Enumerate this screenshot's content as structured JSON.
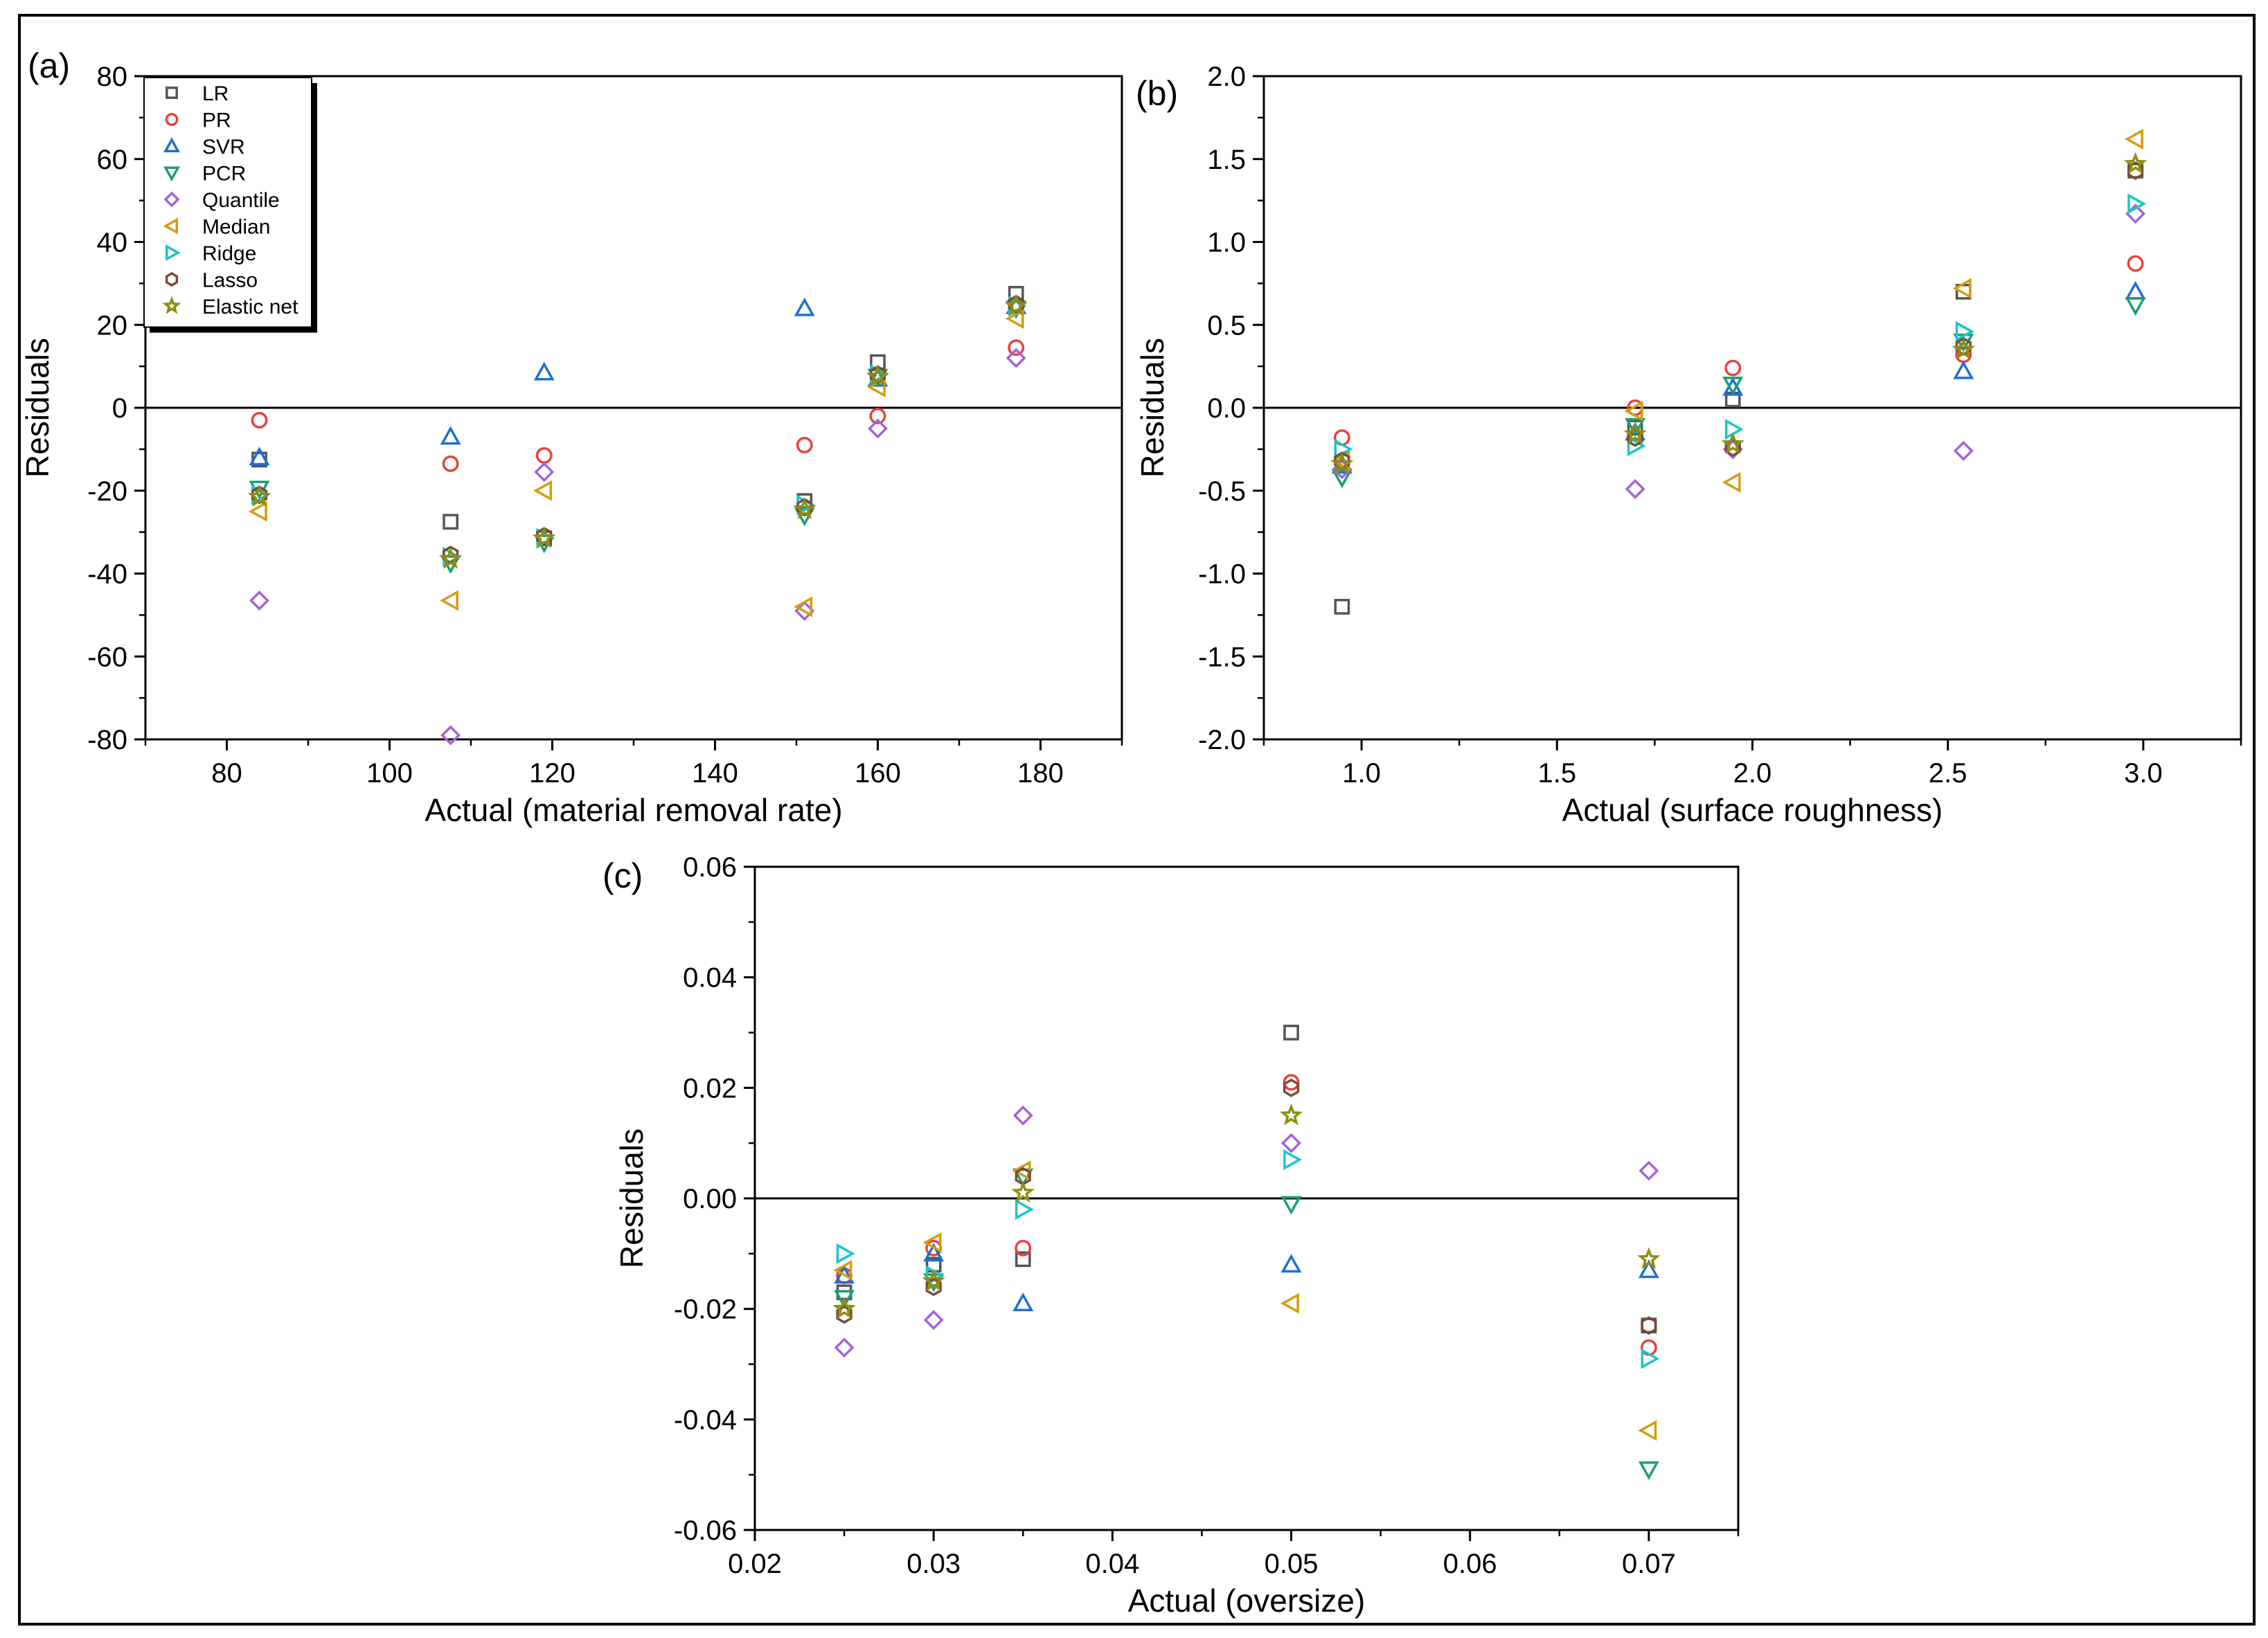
{
  "series_styles": [
    {
      "name": "LR",
      "marker": "square",
      "color": "#555555"
    },
    {
      "name": "PR",
      "marker": "circle",
      "color": "#e8413c"
    },
    {
      "name": "SVR",
      "marker": "triangle-up",
      "color": "#1f6fd1"
    },
    {
      "name": "PCR",
      "marker": "triangle-down",
      "color": "#1a9e76"
    },
    {
      "name": "Quantile",
      "marker": "diamond",
      "color": "#a463d9"
    },
    {
      "name": "Median",
      "marker": "triangle-left",
      "color": "#d49c10"
    },
    {
      "name": "Ridge",
      "marker": "triangle-right",
      "color": "#1ac6c6"
    },
    {
      "name": "Lasso",
      "marker": "hexagon",
      "color": "#7a4a3a"
    },
    {
      "name": "Elastic net",
      "marker": "star",
      "color": "#8e8e10"
    }
  ],
  "chart_data": [
    {
      "panel": "(a)",
      "type": "scatter",
      "xlabel": "Actual (material removal rate)",
      "ylabel": "Residuals",
      "xlim": [
        70,
        190
      ],
      "ylim": [
        -80,
        80
      ],
      "xticks": [
        80,
        100,
        120,
        140,
        160,
        180
      ],
      "yticks": [
        -80,
        -60,
        -40,
        -20,
        0,
        20,
        40,
        60,
        80
      ],
      "x": [
        84,
        107.5,
        119,
        151,
        160,
        177
      ],
      "legend": "top-left",
      "series": [
        {
          "name": "LR",
          "values": [
            -12.5,
            -27.5,
            -31.5,
            -22.5,
            11,
            27.5
          ]
        },
        {
          "name": "PR",
          "values": [
            -3,
            -13.5,
            -11.5,
            -9,
            -2,
            14.5
          ]
        },
        {
          "name": "SVR",
          "values": [
            -12,
            -7,
            8.5,
            24,
            7,
            24.5
          ]
        },
        {
          "name": "PCR",
          "values": [
            -19.5,
            -37.5,
            -32.5,
            -26,
            7.5,
            24
          ]
        },
        {
          "name": "Quantile",
          "values": [
            -46.5,
            -79,
            -15.5,
            -49,
            -5,
            12
          ]
        },
        {
          "name": "Median",
          "values": [
            -25,
            -46.5,
            -20,
            -48,
            5,
            21.5
          ]
        },
        {
          "name": "Ridge",
          "values": [
            -21,
            -36,
            -31.5,
            -23.5,
            8,
            24.5
          ]
        },
        {
          "name": "Lasso",
          "values": [
            -21,
            -35.5,
            -31,
            -24,
            8,
            25
          ]
        },
        {
          "name": "Elastic net",
          "values": [
            -21.5,
            -36.5,
            -31.5,
            -24.5,
            7.5,
            24.5
          ]
        }
      ]
    },
    {
      "panel": "(b)",
      "type": "scatter",
      "xlabel": "Actual (surface roughness)",
      "ylabel": "Residuals",
      "xlim": [
        0.75,
        3.25
      ],
      "ylim": [
        -2.0,
        2.0
      ],
      "xticks": [
        1.0,
        1.5,
        2.0,
        2.5,
        3.0
      ],
      "xtick_labels": [
        "1.0",
        "1.5",
        "2.0",
        "2.5",
        "3.0"
      ],
      "yticks": [
        -2.0,
        -1.5,
        -1.0,
        -0.5,
        0.0,
        0.5,
        1.0,
        1.5,
        2.0
      ],
      "ytick_labels": [
        "-2.0",
        "-1.5",
        "-1.0",
        "-0.5",
        "0.0",
        "0.5",
        "1.0",
        "1.5",
        "2.0"
      ],
      "x": [
        0.95,
        1.7,
        1.95,
        2.54,
        2.98
      ],
      "series": [
        {
          "name": "LR",
          "values": [
            -1.2,
            -0.12,
            0.05,
            0.7,
            1.43
          ]
        },
        {
          "name": "PR",
          "values": [
            -0.18,
            0.0,
            0.24,
            0.32,
            0.87
          ]
        },
        {
          "name": "SVR",
          "values": [
            -0.35,
            -0.15,
            0.12,
            0.22,
            0.7
          ]
        },
        {
          "name": "PCR",
          "values": [
            -0.42,
            -0.11,
            0.14,
            0.4,
            0.62
          ]
        },
        {
          "name": "Quantile",
          "values": [
            -0.37,
            -0.49,
            -0.25,
            -0.26,
            1.17
          ]
        },
        {
          "name": "Median",
          "values": [
            -0.32,
            -0.02,
            -0.45,
            0.72,
            1.62
          ]
        },
        {
          "name": "Ridge",
          "values": [
            -0.25,
            -0.23,
            -0.13,
            0.46,
            1.23
          ]
        },
        {
          "name": "Lasso",
          "values": [
            -0.32,
            -0.18,
            -0.24,
            0.37,
            1.43
          ]
        },
        {
          "name": "Elastic net",
          "values": [
            -0.34,
            -0.16,
            -0.22,
            0.35,
            1.47
          ]
        }
      ]
    },
    {
      "panel": "(c)",
      "type": "scatter",
      "xlabel": "Actual (oversize)",
      "ylabel": "Residuals",
      "xlim": [
        0.02,
        0.075
      ],
      "ylim": [
        -0.06,
        0.06
      ],
      "xticks": [
        0.02,
        0.03,
        0.04,
        0.05,
        0.06,
        0.07
      ],
      "xtick_labels": [
        "0.02",
        "0.03",
        "0.04",
        "0.05",
        "0.06",
        "0.07"
      ],
      "yticks": [
        -0.06,
        -0.04,
        -0.02,
        0.0,
        0.02,
        0.04,
        0.06
      ],
      "ytick_labels": [
        "-0.06",
        "-0.04",
        "-0.02",
        "0.00",
        "0.02",
        "0.04",
        "0.06"
      ],
      "x": [
        0.025,
        0.03,
        0.035,
        0.05,
        0.07
      ],
      "series": [
        {
          "name": "LR",
          "values": [
            -0.017,
            -0.012,
            -0.011,
            0.03,
            -0.023
          ]
        },
        {
          "name": "PR",
          "values": [
            -0.014,
            -0.009,
            -0.009,
            0.021,
            -0.027
          ]
        },
        {
          "name": "SVR",
          "values": [
            -0.014,
            -0.01,
            -0.019,
            -0.012,
            -0.013
          ]
        },
        {
          "name": "PCR",
          "values": [
            -0.018,
            -0.015,
            0.004,
            -0.001,
            -0.049
          ]
        },
        {
          "name": "Quantile",
          "values": [
            -0.027,
            -0.022,
            0.015,
            0.01,
            0.005
          ]
        },
        {
          "name": "Median",
          "values": [
            -0.013,
            -0.008,
            0.005,
            -0.019,
            -0.042
          ]
        },
        {
          "name": "Ridge",
          "values": [
            -0.01,
            -0.014,
            -0.002,
            0.007,
            -0.029
          ]
        },
        {
          "name": "Lasso",
          "values": [
            -0.021,
            -0.016,
            0.004,
            0.02,
            -0.023
          ]
        },
        {
          "name": "Elastic net",
          "values": [
            -0.02,
            -0.015,
            0.001,
            0.015,
            -0.011
          ]
        }
      ]
    }
  ]
}
